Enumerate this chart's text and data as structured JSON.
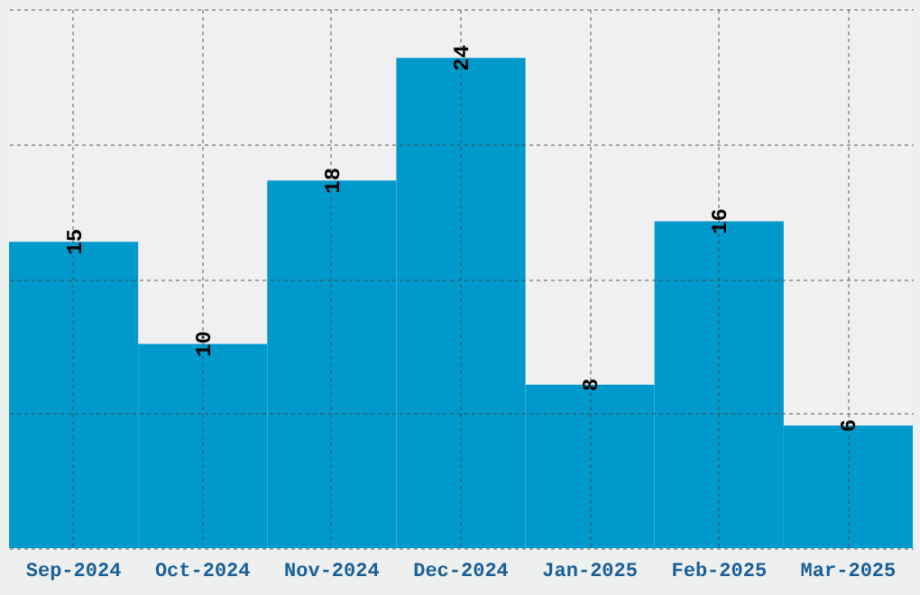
{
  "chart_data": {
    "type": "bar",
    "categories": [
      "Sep-2024",
      "Oct-2024",
      "Nov-2024",
      "Dec-2024",
      "Jan-2025",
      "Feb-2025",
      "Mar-2025"
    ],
    "values": [
      15,
      10,
      18,
      24,
      8,
      16,
      6
    ],
    "color": "#0099cc",
    "ylim": [
      0,
      26.4
    ],
    "yticks": [
      {
        "value": 0,
        "label": null
      },
      {
        "value": 6.6,
        "label": null
      },
      {
        "value": 13.2,
        "label": null
      },
      {
        "value": 19.8,
        "label": null
      },
      {
        "value": 26.4,
        "label": null
      }
    ],
    "tick_labels": "x",
    "grid": true,
    "data_labels": true
  }
}
